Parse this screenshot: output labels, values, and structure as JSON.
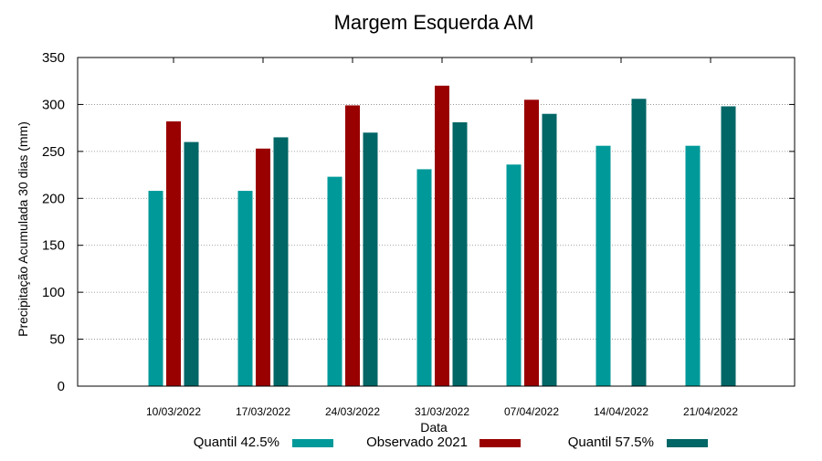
{
  "chart_data": {
    "type": "bar",
    "title": "Margem Esquerda AM",
    "xlabel": "Data",
    "ylabel": "Precipitação Acumulada 30 dias (mm)",
    "ylim": [
      0,
      350
    ],
    "yticks": [
      0,
      50,
      100,
      150,
      200,
      250,
      300,
      350
    ],
    "grid": true,
    "legend_position": "bottom",
    "categories": [
      "10/03/2022",
      "17/03/2022",
      "24/03/2022",
      "31/03/2022",
      "07/04/2022",
      "14/04/2022",
      "21/04/2022"
    ],
    "series": [
      {
        "name": "Quantil 42.5%",
        "color": "#009999",
        "values": [
          208,
          208,
          223,
          231,
          236,
          256,
          256
        ]
      },
      {
        "name": "Observado 2021",
        "color": "#990000",
        "values": [
          282,
          253,
          299,
          320,
          305,
          null,
          null
        ]
      },
      {
        "name": "Quantil 57.5%",
        "color": "#006666",
        "values": [
          260,
          265,
          270,
          281,
          290,
          306,
          298
        ]
      }
    ]
  }
}
